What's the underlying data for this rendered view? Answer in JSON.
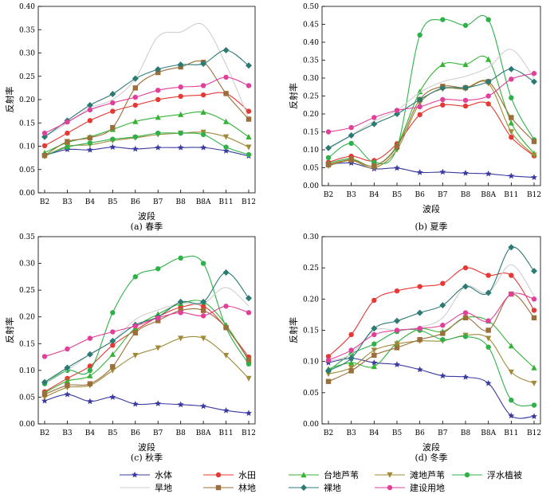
{
  "chart_data": [
    {
      "type": "line",
      "caption": "(a) 春季",
      "xlabel": "波段",
      "ylabel": "反射率",
      "ylim": [
        0,
        0.4
      ],
      "yticks": [
        "0.00",
        "0.05",
        "0.10",
        "0.15",
        "0.20",
        "0.25",
        "0.30",
        "0.35",
        "0.40"
      ],
      "categories": [
        "B2",
        "B3",
        "B4",
        "B5",
        "B6",
        "B7",
        "B8",
        "B8A",
        "B11",
        "B12"
      ],
      "series_values": [
        [
          0.08,
          0.093,
          0.092,
          0.098,
          0.094,
          0.097,
          0.097,
          0.097,
          0.09,
          0.079
        ],
        [
          0.101,
          0.128,
          0.155,
          0.175,
          0.188,
          0.2,
          0.207,
          0.21,
          0.213,
          0.175
        ],
        [
          0.086,
          0.108,
          0.12,
          0.136,
          0.153,
          0.162,
          0.168,
          0.173,
          0.153,
          0.12
        ],
        [
          0.078,
          0.1,
          0.103,
          0.112,
          0.118,
          0.125,
          0.128,
          0.13,
          0.12,
          0.098
        ],
        [
          0.08,
          0.098,
          0.107,
          0.115,
          0.12,
          0.128,
          0.128,
          0.125,
          0.098,
          0.082
        ],
        [
          0.12,
          0.15,
          0.182,
          0.2,
          0.245,
          0.335,
          0.345,
          0.36,
          0.275,
          0.16
        ],
        [
          0.08,
          0.11,
          0.118,
          0.14,
          0.225,
          0.258,
          0.27,
          0.28,
          0.213,
          0.158
        ],
        [
          0.12,
          0.155,
          0.188,
          0.212,
          0.245,
          0.265,
          0.275,
          0.277,
          0.306,
          0.273
        ],
        [
          0.128,
          0.152,
          0.178,
          0.193,
          0.205,
          0.22,
          0.227,
          0.23,
          0.248,
          0.23
        ]
      ]
    },
    {
      "type": "line",
      "caption": "(b) 夏季",
      "xlabel": "波段",
      "ylabel": "反射率",
      "ylim": [
        0,
        0.5
      ],
      "yticks": [
        "0.00",
        "0.05",
        "0.10",
        "0.15",
        "0.20",
        "0.25",
        "0.30",
        "0.35",
        "0.40",
        "0.45",
        "0.50"
      ],
      "categories": [
        "B2",
        "B3",
        "B4",
        "B5",
        "B6",
        "B7",
        "B8",
        "B8A",
        "B11",
        "B12"
      ],
      "series_values": [
        [
          0.06,
          0.063,
          0.047,
          0.049,
          0.037,
          0.038,
          0.035,
          0.033,
          0.027,
          0.023
        ],
        [
          0.065,
          0.082,
          0.07,
          0.117,
          0.198,
          0.225,
          0.222,
          0.228,
          0.135,
          0.083
        ],
        [
          0.062,
          0.075,
          0.055,
          0.112,
          0.262,
          0.338,
          0.338,
          0.352,
          0.175,
          0.09
        ],
        [
          0.055,
          0.07,
          0.05,
          0.1,
          0.23,
          0.27,
          0.27,
          0.285,
          0.15,
          0.085
        ],
        [
          0.078,
          0.118,
          0.065,
          0.105,
          0.42,
          0.463,
          0.447,
          0.463,
          0.245,
          0.128
        ],
        [
          0.102,
          0.14,
          0.18,
          0.21,
          0.26,
          0.29,
          0.305,
          0.33,
          0.38,
          0.3
        ],
        [
          0.058,
          0.072,
          0.055,
          0.108,
          0.24,
          0.277,
          0.273,
          0.29,
          0.19,
          0.123
        ],
        [
          0.105,
          0.14,
          0.172,
          0.2,
          0.24,
          0.272,
          0.273,
          0.29,
          0.325,
          0.29
        ],
        [
          0.15,
          0.162,
          0.19,
          0.21,
          0.22,
          0.24,
          0.238,
          0.25,
          0.297,
          0.313
        ]
      ]
    },
    {
      "type": "line",
      "caption": "(c) 秋季",
      "xlabel": "波段",
      "ylabel": "反射率",
      "ylim": [
        0,
        0.35
      ],
      "yticks": [
        "0.00",
        "0.05",
        "0.10",
        "0.15",
        "0.20",
        "0.25",
        "0.30",
        "0.35"
      ],
      "categories": [
        "B2",
        "B3",
        "B4",
        "B5",
        "B6",
        "B7",
        "B8",
        "B8A",
        "B11",
        "B12"
      ],
      "series_values": [
        [
          0.043,
          0.055,
          0.042,
          0.05,
          0.037,
          0.038,
          0.036,
          0.033,
          0.025,
          0.02
        ],
        [
          0.06,
          0.085,
          0.108,
          0.147,
          0.175,
          0.2,
          0.218,
          0.22,
          0.18,
          0.125
        ],
        [
          0.058,
          0.08,
          0.09,
          0.13,
          0.18,
          0.205,
          0.225,
          0.228,
          0.185,
          0.118
        ],
        [
          0.05,
          0.068,
          0.072,
          0.1,
          0.128,
          0.142,
          0.16,
          0.16,
          0.128,
          0.085
        ],
        [
          0.075,
          0.1,
          0.1,
          0.208,
          0.275,
          0.29,
          0.31,
          0.3,
          0.18,
          0.112
        ],
        [
          0.075,
          0.1,
          0.13,
          0.155,
          0.195,
          0.213,
          0.225,
          0.225,
          0.255,
          0.22
        ],
        [
          0.055,
          0.072,
          0.075,
          0.107,
          0.17,
          0.193,
          0.212,
          0.212,
          0.18,
          0.12
        ],
        [
          0.078,
          0.105,
          0.13,
          0.155,
          0.185,
          0.2,
          0.228,
          0.228,
          0.283,
          0.235
        ],
        [
          0.126,
          0.14,
          0.16,
          0.172,
          0.183,
          0.198,
          0.208,
          0.202,
          0.22,
          0.208
        ]
      ]
    },
    {
      "type": "line",
      "caption": "(d) 冬季",
      "xlabel": "波段",
      "ylabel": "反射率",
      "ylim": [
        0,
        0.3
      ],
      "yticks": [
        "0.00",
        "0.05",
        "0.10",
        "0.15",
        "0.20",
        "0.25",
        "0.30"
      ],
      "categories": [
        "B2",
        "B3",
        "B4",
        "B5",
        "B6",
        "B7",
        "B8",
        "B8A",
        "B11",
        "B12"
      ],
      "series_values": [
        [
          0.098,
          0.105,
          0.098,
          0.095,
          0.087,
          0.077,
          0.075,
          0.065,
          0.013,
          0.012
        ],
        [
          0.108,
          0.143,
          0.198,
          0.213,
          0.22,
          0.225,
          0.25,
          0.238,
          0.238,
          0.182
        ],
        [
          0.088,
          0.098,
          0.092,
          0.13,
          0.152,
          0.148,
          0.17,
          0.165,
          0.125,
          0.09
        ],
        [
          0.08,
          0.09,
          0.118,
          0.128,
          0.133,
          0.133,
          0.142,
          0.137,
          0.083,
          0.065
        ],
        [
          0.085,
          0.112,
          0.128,
          0.148,
          0.15,
          0.135,
          0.14,
          0.123,
          0.038,
          0.03
        ],
        [
          0.1,
          0.112,
          0.15,
          0.15,
          0.155,
          0.17,
          0.22,
          0.21,
          0.255,
          0.205
        ],
        [
          0.068,
          0.085,
          0.11,
          0.122,
          0.135,
          0.145,
          0.17,
          0.15,
          0.208,
          0.17
        ],
        [
          0.085,
          0.105,
          0.153,
          0.165,
          0.178,
          0.19,
          0.22,
          0.21,
          0.283,
          0.245
        ],
        [
          0.102,
          0.118,
          0.143,
          0.15,
          0.153,
          0.158,
          0.178,
          0.165,
          0.208,
          0.2
        ]
      ]
    }
  ],
  "series": [
    {
      "name": "水体",
      "color": "#3a3aa0",
      "marker": "star"
    },
    {
      "name": "水田",
      "color": "#e53935",
      "marker": "circle"
    },
    {
      "name": "台地芦苇",
      "color": "#34b334",
      "marker": "triangle-up"
    },
    {
      "name": "滩地芦苇",
      "color": "#a08a38",
      "marker": "triangle-down"
    },
    {
      "name": "浮水植被",
      "color": "#2fb14a",
      "marker": "circle"
    },
    {
      "name": "旱地",
      "color": "#cfcfcf",
      "marker": "none"
    },
    {
      "name": "林地",
      "color": "#9a6f3a",
      "marker": "square"
    },
    {
      "name": "裸地",
      "color": "#2b7a74",
      "marker": "diamond"
    },
    {
      "name": "建设用地",
      "color": "#e0409a",
      "marker": "circle"
    }
  ]
}
